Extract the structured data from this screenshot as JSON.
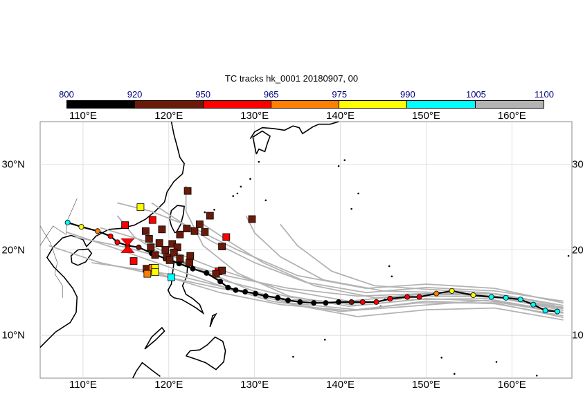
{
  "title": "TC tracks  hk_0001 20180907, 00",
  "colorbar": {
    "ticks": [
      "800",
      "920",
      "950",
      "965",
      "975",
      "990",
      "1005",
      "1100"
    ],
    "colors": [
      "#000000",
      "#6b1a0a",
      "#ff0000",
      "#ff7f00",
      "#ffff00",
      "#00ffff",
      "#b3b3b3"
    ]
  },
  "map": {
    "lon_labels": [
      "110°E",
      "120°E",
      "130°E",
      "140°E",
      "150°E",
      "160°E"
    ],
    "lat_labels": [
      "30°N",
      "20°N",
      "10°N"
    ],
    "lon_range": [
      105,
      167
    ],
    "lat_range": [
      5,
      35
    ],
    "lon_ticks": [
      110,
      120,
      130,
      140,
      150,
      160
    ],
    "lat_ticks": [
      30,
      20,
      10
    ],
    "ensemble_color": "#b3b3b3",
    "land_color": "#000000"
  },
  "chart_data": {
    "type": "scatter",
    "main_track": [
      [
        165.3,
        12.8,
        "#00ffff"
      ],
      [
        163.9,
        12.9,
        "#00ffff"
      ],
      [
        162.5,
        13.6,
        "#00ffff"
      ],
      [
        161.0,
        14.2,
        "#00ffff"
      ],
      [
        159.3,
        14.4,
        "#00ffff"
      ],
      [
        157.6,
        14.5,
        "#00ffff"
      ],
      [
        155.5,
        14.7,
        "#ffff00"
      ],
      [
        153.0,
        15.2,
        "#ffff00"
      ],
      [
        151.2,
        14.9,
        "#ff7f00"
      ],
      [
        149.2,
        14.5,
        "#ff0000"
      ],
      [
        147.8,
        14.5,
        "#ff0000"
      ],
      [
        145.8,
        14.3,
        "#ff0000"
      ],
      [
        144.2,
        13.9,
        "#ff0000"
      ],
      [
        142.6,
        13.9,
        "#ff0000"
      ],
      [
        141.3,
        13.9,
        "#6b1a0a"
      ],
      [
        139.8,
        13.9,
        "#000000"
      ],
      [
        138.3,
        13.8,
        "#000000"
      ],
      [
        136.9,
        13.8,
        "#000000"
      ],
      [
        135.3,
        13.9,
        "#000000"
      ],
      [
        133.9,
        14.1,
        "#000000"
      ],
      [
        132.7,
        14.4,
        "#000000"
      ],
      [
        131.3,
        14.6,
        "#000000"
      ],
      [
        130.1,
        14.9,
        "#000000"
      ],
      [
        128.9,
        15.1,
        "#000000"
      ],
      [
        127.8,
        15.3,
        "#000000"
      ],
      [
        126.9,
        15.6,
        "#000000"
      ],
      [
        126.0,
        16.3,
        "#000000"
      ],
      [
        124.4,
        17.3,
        "#000000"
      ],
      [
        122.8,
        17.8,
        "#000000"
      ],
      [
        121.2,
        18.4,
        "#000000"
      ],
      [
        119.6,
        19.0,
        "#000000"
      ],
      [
        118.0,
        19.6,
        "#000000"
      ],
      [
        116.5,
        20.3,
        "#6b1a0a"
      ],
      [
        115.2,
        20.5,
        "#6b1a0a"
      ],
      [
        114.0,
        20.9,
        "#ff0000"
      ],
      [
        113.2,
        21.6,
        "#ff0000"
      ],
      [
        111.7,
        22.2,
        "#ff7f00"
      ],
      [
        109.8,
        22.7,
        "#ffff00"
      ],
      [
        108.2,
        23.2,
        "#00ffff"
      ]
    ],
    "current_position": [
      115.2,
      20.5
    ],
    "landfall_points": [
      [
        122.2,
        26.9,
        "#6b1a0a"
      ],
      [
        116.7,
        25.0,
        "#ffff00"
      ],
      [
        118.1,
        23.5,
        "#ff0000"
      ],
      [
        114.9,
        22.9,
        "#ff0000"
      ],
      [
        117.3,
        22.2,
        "#6b1a0a"
      ],
      [
        119.2,
        22.4,
        "#6b1a0a"
      ],
      [
        121.3,
        21.8,
        "#6b1a0a"
      ],
      [
        122.1,
        22.5,
        "#6b1a0a"
      ],
      [
        123.0,
        22.2,
        "#6b1a0a"
      ],
      [
        123.6,
        23.0,
        "#6b1a0a"
      ],
      [
        124.2,
        22.1,
        "#6b1a0a"
      ],
      [
        124.8,
        24.0,
        "#6b1a0a"
      ],
      [
        129.7,
        23.6,
        "#6b1a0a"
      ],
      [
        126.7,
        21.5,
        "#ff0000"
      ],
      [
        126.2,
        20.4,
        "#6b1a0a"
      ],
      [
        117.7,
        21.3,
        "#6b1a0a"
      ],
      [
        118.9,
        20.8,
        "#6b1a0a"
      ],
      [
        120.4,
        20.7,
        "#6b1a0a"
      ],
      [
        121.0,
        20.3,
        "#6b1a0a"
      ],
      [
        117.9,
        20.3,
        "#6b1a0a"
      ],
      [
        119.6,
        20.0,
        "#6b1a0a"
      ],
      [
        120.6,
        19.7,
        "#6b1a0a"
      ],
      [
        118.4,
        19.4,
        "#6b1a0a"
      ],
      [
        119.8,
        19.1,
        "#6b1a0a"
      ],
      [
        121.3,
        19.0,
        "#6b1a0a"
      ],
      [
        122.5,
        19.3,
        "#6b1a0a"
      ],
      [
        120.1,
        18.8,
        "#6b1a0a"
      ],
      [
        122.4,
        18.5,
        "#6b1a0a"
      ],
      [
        115.9,
        18.7,
        "#ff0000"
      ],
      [
        117.4,
        17.8,
        "#6b1a0a"
      ],
      [
        118.1,
        17.9,
        "#ff7f00"
      ],
      [
        118.4,
        17.9,
        "#ffff00"
      ],
      [
        117.5,
        17.2,
        "#ff7f00"
      ],
      [
        118.4,
        17.4,
        "#ffff00"
      ],
      [
        120.3,
        16.8,
        "#00ffff"
      ],
      [
        125.8,
        17.5,
        "#ff0000"
      ],
      [
        126.2,
        17.6,
        "#6b1a0a"
      ],
      [
        125.5,
        17.2,
        "#6b1a0a"
      ]
    ],
    "ensemble_tracks": [
      [
        [
          166,
          13.2
        ],
        [
          158,
          14.6
        ],
        [
          150,
          14.9
        ],
        [
          142,
          14.6
        ],
        [
          134,
          15.5
        ],
        [
          127,
          16.9
        ],
        [
          121,
          18.6
        ],
        [
          115,
          20.3
        ],
        [
          109,
          21.5
        ]
      ],
      [
        [
          166,
          12.6
        ],
        [
          157,
          14.1
        ],
        [
          148,
          13.4
        ],
        [
          140,
          12.8
        ],
        [
          132,
          14.0
        ],
        [
          126,
          15.8
        ],
        [
          120,
          18.0
        ],
        [
          114,
          20.1
        ],
        [
          108,
          22.1
        ]
      ],
      [
        [
          166,
          14.0
        ],
        [
          158,
          15.2
        ],
        [
          150,
          15.6
        ],
        [
          143,
          15.0
        ],
        [
          136,
          16.2
        ],
        [
          130,
          18.5
        ],
        [
          125,
          21.0
        ],
        [
          121,
          23.5
        ],
        [
          118,
          25.5
        ]
      ],
      [
        [
          166,
          11.8
        ],
        [
          158,
          13.2
        ],
        [
          150,
          13.0
        ],
        [
          142,
          12.2
        ],
        [
          135,
          13.5
        ],
        [
          129,
          15.5
        ],
        [
          123,
          18.0
        ],
        [
          118,
          20.5
        ]
      ],
      [
        [
          165,
          12.9
        ],
        [
          157,
          14.3
        ],
        [
          149,
          14.2
        ],
        [
          141,
          13.4
        ],
        [
          134,
          14.6
        ],
        [
          128,
          17.3
        ],
        [
          124,
          20.5
        ],
        [
          122,
          24.5
        ],
        [
          122,
          27.5
        ]
      ],
      [
        [
          166,
          13.5
        ],
        [
          158,
          14.9
        ],
        [
          151,
          14.9
        ],
        [
          144,
          14.4
        ],
        [
          137,
          15.8
        ],
        [
          131,
          18.5
        ],
        [
          127,
          21.0
        ],
        [
          124,
          23.0
        ]
      ],
      [
        [
          166,
          12.3
        ],
        [
          158,
          13.7
        ],
        [
          150,
          14.0
        ],
        [
          142,
          13.0
        ],
        [
          134,
          13.8
        ],
        [
          127,
          15.5
        ],
        [
          121,
          17.0
        ],
        [
          116,
          17.8
        ],
        [
          111,
          18.5
        ]
      ],
      [
        [
          166,
          13.1
        ],
        [
          159,
          14.3
        ],
        [
          152,
          15.0
        ],
        [
          145,
          15.2
        ],
        [
          138,
          16.5
        ],
        [
          133,
          19.2
        ],
        [
          130,
          22.0
        ],
        [
          129,
          24.0
        ]
      ],
      [
        [
          166,
          12.9
        ],
        [
          158,
          14.5
        ],
        [
          150,
          14.6
        ],
        [
          142,
          13.7
        ],
        [
          134,
          14.2
        ],
        [
          126,
          15.5
        ],
        [
          119,
          17.0
        ],
        [
          112,
          18.5
        ],
        [
          106,
          20.5
        ]
      ],
      [
        [
          166,
          13.8
        ],
        [
          158,
          15.5
        ],
        [
          150,
          16.0
        ],
        [
          143,
          15.5
        ],
        [
          135,
          17.0
        ],
        [
          128,
          20.0
        ],
        [
          123,
          22.5
        ],
        [
          118,
          24.5
        ],
        [
          114,
          25.5
        ]
      ],
      [
        [
          166,
          12.1
        ],
        [
          158,
          13.8
        ],
        [
          149,
          13.8
        ],
        [
          141,
          12.9
        ],
        [
          133,
          13.6
        ],
        [
          126,
          15.0
        ],
        [
          121,
          16.5
        ],
        [
          118,
          17.5
        ]
      ],
      [
        [
          166,
          13.3
        ],
        [
          157,
          14.7
        ],
        [
          149,
          14.8
        ],
        [
          141,
          14.0
        ],
        [
          133,
          15.4
        ],
        [
          125,
          18.0
        ],
        [
          118,
          20.8
        ],
        [
          112,
          22.6
        ]
      ],
      [
        [
          165,
          13.6
        ],
        [
          157,
          15.0
        ],
        [
          150,
          15.4
        ],
        [
          144,
          15.8
        ],
        [
          139,
          17.5
        ],
        [
          135,
          20.5
        ],
        [
          133,
          23.0
        ]
      ],
      [
        [
          166,
          12.7
        ],
        [
          158,
          14.0
        ],
        [
          150,
          14.3
        ],
        [
          142,
          13.5
        ],
        [
          134,
          14.5
        ],
        [
          126,
          16.5
        ],
        [
          120,
          19.0
        ],
        [
          116,
          21.5
        ],
        [
          114,
          24.0
        ]
      ]
    ]
  }
}
